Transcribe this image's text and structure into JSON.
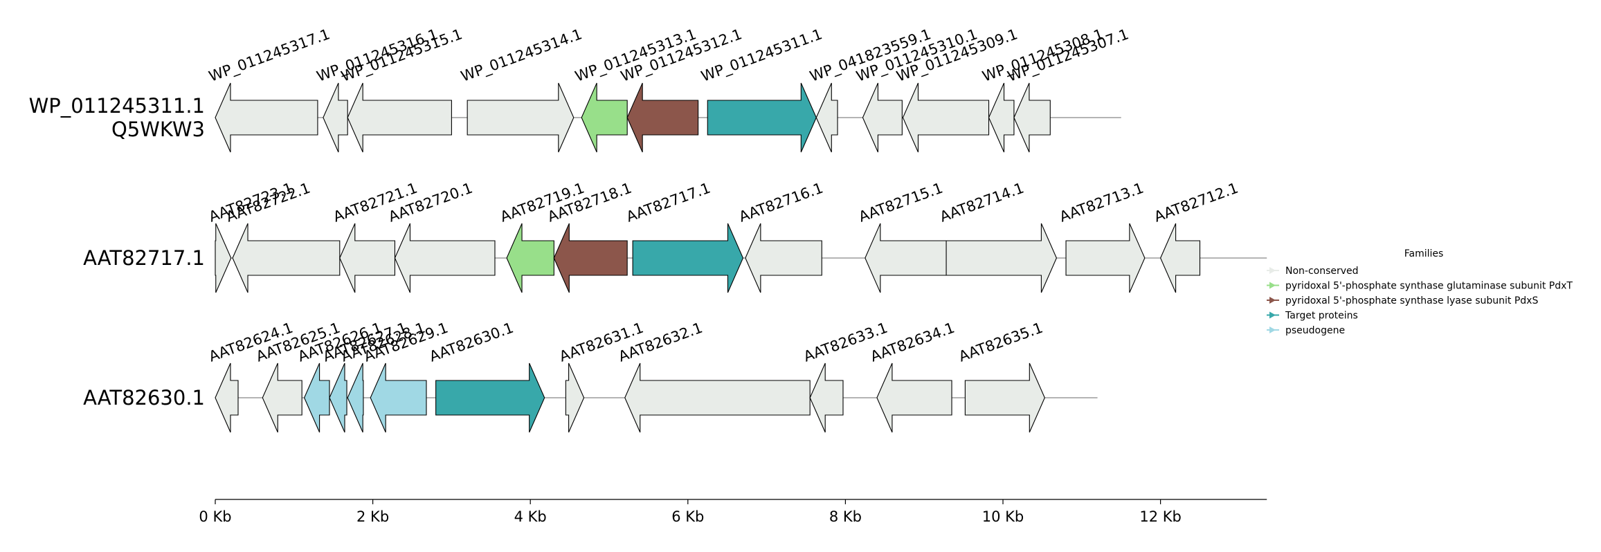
{
  "chart_data": {
    "type": "gene-neighborhood",
    "x_unit": "Kb",
    "xlim": [
      0,
      13.35
    ],
    "ticks": [
      {
        "value": 0,
        "label": "0 Kb"
      },
      {
        "value": 2,
        "label": "2 Kb"
      },
      {
        "value": 4,
        "label": "4 Kb"
      },
      {
        "value": 6,
        "label": "6 Kb"
      },
      {
        "value": 8,
        "label": "8 Kb"
      },
      {
        "value": 10,
        "label": "10 Kb"
      },
      {
        "value": 12,
        "label": "12 Kb"
      }
    ],
    "legend": {
      "title": "Families",
      "placement": "right",
      "entries": [
        {
          "label": "Non-conserved",
          "color": "#e8ece8"
        },
        {
          "label": "pyridoxal 5'-phosphate synthase glutaminase subunit PdxT",
          "color": "#98df8a"
        },
        {
          "label": "pyridoxal 5'-phosphate synthase lyase subunit PdxS",
          "color": "#8c564b"
        },
        {
          "label": "Target proteins",
          "color": "#38a8aa"
        },
        {
          "label": "pseudogene",
          "color": "#a0d8e4"
        }
      ]
    },
    "colors": {
      "Non-conserved": "#e8ece8",
      "PdxT": "#98df8a",
      "PdxS": "#8c564b",
      "Target": "#38a8aa",
      "pseudogene": "#a0d8e4"
    },
    "rows": [
      {
        "label": [
          "WP_011245311.1",
          "Q5WKW3"
        ],
        "line_end": 11.5,
        "genes": [
          {
            "name": "WP_011245317.1",
            "start": 0.0,
            "end": 1.3,
            "strand": -1,
            "family": "Non-conserved"
          },
          {
            "name": "WP_011245316.1",
            "start": 1.37,
            "end": 1.68,
            "strand": -1,
            "family": "Non-conserved"
          },
          {
            "name": "WP_011245315.1",
            "start": 1.68,
            "end": 3.0,
            "strand": -1,
            "family": "Non-conserved"
          },
          {
            "name": "WP_011245314.1",
            "start": 3.2,
            "end": 4.55,
            "strand": 1,
            "family": "Non-conserved"
          },
          {
            "name": "WP_011245313.1",
            "start": 4.65,
            "end": 5.23,
            "strand": -1,
            "family": "PdxT"
          },
          {
            "name": "WP_011245312.1",
            "start": 5.23,
            "end": 6.13,
            "strand": -1,
            "family": "PdxS"
          },
          {
            "name": "WP_011245311.1",
            "start": 6.25,
            "end": 7.63,
            "strand": 1,
            "family": "Target"
          },
          {
            "name": "WP_041823559.1",
            "start": 7.63,
            "end": 7.9,
            "strand": -1,
            "family": "Non-conserved"
          },
          {
            "name": "WP_011245310.1",
            "start": 8.22,
            "end": 8.72,
            "strand": -1,
            "family": "Non-conserved"
          },
          {
            "name": "WP_011245309.1",
            "start": 8.73,
            "end": 9.82,
            "strand": -1,
            "family": "Non-conserved"
          },
          {
            "name": "WP_011245308.1",
            "start": 9.82,
            "end": 10.14,
            "strand": -1,
            "family": "Non-conserved"
          },
          {
            "name": "WP_011245307.1",
            "start": 10.14,
            "end": 10.6,
            "strand": -1,
            "family": "Non-conserved"
          }
        ]
      },
      {
        "label": [
          "AAT82717.1"
        ],
        "line_end": 13.35,
        "genes": [
          {
            "name": "AAT82723.1",
            "start": 0.0,
            "end": 0.2,
            "strand": 1,
            "family": "Non-conserved"
          },
          {
            "name": "AAT82722.1",
            "start": 0.22,
            "end": 1.58,
            "strand": -1,
            "family": "Non-conserved"
          },
          {
            "name": "AAT82721.1",
            "start": 1.58,
            "end": 2.28,
            "strand": -1,
            "family": "Non-conserved"
          },
          {
            "name": "AAT82720.1",
            "start": 2.28,
            "end": 3.55,
            "strand": -1,
            "family": "Non-conserved"
          },
          {
            "name": "AAT82719.1",
            "start": 3.7,
            "end": 4.3,
            "strand": -1,
            "family": "PdxT"
          },
          {
            "name": "AAT82718.1",
            "start": 4.3,
            "end": 5.23,
            "strand": -1,
            "family": "PdxS"
          },
          {
            "name": "AAT82717.1",
            "start": 5.3,
            "end": 6.7,
            "strand": 1,
            "family": "Target"
          },
          {
            "name": "AAT82716.1",
            "start": 6.73,
            "end": 7.7,
            "strand": -1,
            "family": "Non-conserved"
          },
          {
            "name": "AAT82715.1",
            "start": 8.25,
            "end": 9.28,
            "strand": -1,
            "family": "Non-conserved"
          },
          {
            "name": "AAT82714.1",
            "start": 9.28,
            "end": 10.68,
            "strand": 1,
            "family": "Non-conserved"
          },
          {
            "name": "AAT82713.1",
            "start": 10.8,
            "end": 11.8,
            "strand": 1,
            "family": "Non-conserved"
          },
          {
            "name": "AAT82712.1",
            "start": 12.0,
            "end": 12.5,
            "strand": -1,
            "family": "Non-conserved"
          }
        ]
      },
      {
        "label": [
          "AAT82630.1"
        ],
        "line_end": 11.2,
        "genes": [
          {
            "name": "AAT82624.1",
            "start": 0.0,
            "end": 0.29,
            "strand": -1,
            "family": "Non-conserved"
          },
          {
            "name": "AAT82625.1",
            "start": 0.6,
            "end": 1.1,
            "strand": -1,
            "family": "Non-conserved"
          },
          {
            "name": "AAT82626.1",
            "start": 1.13,
            "end": 1.45,
            "strand": -1,
            "family": "pseudogene"
          },
          {
            "name": "AAT82627.1",
            "start": 1.45,
            "end": 1.67,
            "strand": -1,
            "family": "pseudogene"
          },
          {
            "name": "AAT82628.1",
            "start": 1.68,
            "end": 1.88,
            "strand": -1,
            "family": "pseudogene"
          },
          {
            "name": "AAT82629.1",
            "start": 1.97,
            "end": 2.68,
            "strand": -1,
            "family": "pseudogene"
          },
          {
            "name": "AAT82630.1",
            "start": 2.8,
            "end": 4.18,
            "strand": 1,
            "family": "Target"
          },
          {
            "name": "AAT82631.1",
            "start": 4.45,
            "end": 4.68,
            "strand": 1,
            "family": "Non-conserved"
          },
          {
            "name": "AAT82632.1",
            "start": 5.2,
            "end": 7.55,
            "strand": -1,
            "family": "Non-conserved"
          },
          {
            "name": "AAT82633.1",
            "start": 7.55,
            "end": 7.97,
            "strand": -1,
            "family": "Non-conserved"
          },
          {
            "name": "AAT82634.1",
            "start": 8.4,
            "end": 9.35,
            "strand": -1,
            "family": "Non-conserved"
          },
          {
            "name": "AAT82635.1",
            "start": 9.52,
            "end": 10.53,
            "strand": 1,
            "family": "Non-conserved"
          }
        ]
      }
    ]
  }
}
